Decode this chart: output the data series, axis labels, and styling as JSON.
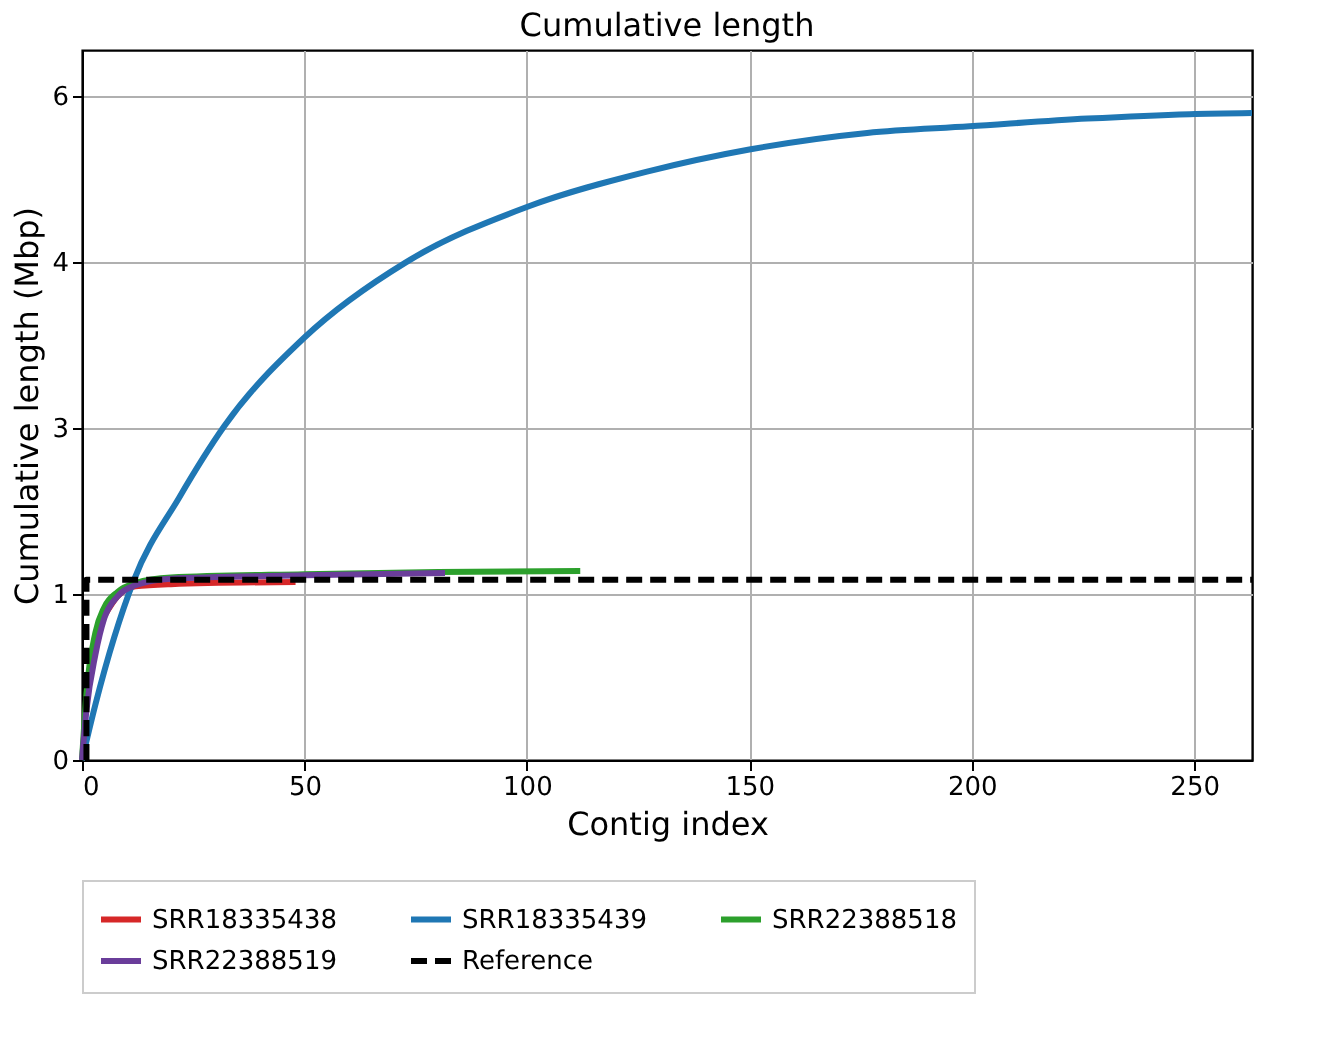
{
  "chart_data": {
    "type": "line",
    "title": "Cumulative length",
    "xlabel": "Contig index",
    "ylabel": "Cumulative length (Mbp)",
    "xlim": [
      0,
      263
    ],
    "xticks": [
      0,
      50,
      100,
      150,
      200,
      250
    ],
    "ylim": [
      0,
      6.42
    ],
    "yticks": [
      0,
      {
        "value": 1.5,
        "label": "1"
      },
      3,
      {
        "value": 4.5,
        "label": "4"
      },
      6
    ],
    "grid": true,
    "legend": "bottom",
    "line_style": "solid",
    "marker": "none",
    "series": [
      {
        "name": "SRR18335438",
        "color": "#d62728",
        "x": [
          5,
          8,
          12,
          20,
          48
        ],
        "values": [
          1.3,
          1.48,
          1.57,
          1.59,
          1.61
        ]
      },
      {
        "name": "SRR18335439",
        "color": "#1f77b4",
        "x": [
          0,
          3,
          11.6,
          21.8,
          32,
          50,
          72.8,
          100,
          127,
          150,
          176.5,
          199.5,
          226,
          249,
          263
        ],
        "values": [
          0,
          0.5,
          1.62,
          2.37,
          3.02,
          3.82,
          4.5,
          5.0,
          5.32,
          5.52,
          5.67,
          5.73,
          5.8,
          5.84,
          5.85
        ]
      },
      {
        "name": "SRR22388518",
        "color": "#2ca02c",
        "x": [
          0,
          1,
          3,
          5,
          8,
          12,
          20,
          50,
          80,
          112
        ],
        "values": [
          0,
          0.6,
          1.15,
          1.38,
          1.52,
          1.6,
          1.65,
          1.68,
          1.7,
          1.71
        ]
      },
      {
        "name": "SRR22388519",
        "color": "#6a3d9a",
        "x": [
          0,
          1,
          3,
          5,
          8,
          12,
          20,
          50,
          81.6
        ],
        "values": [
          0,
          0.45,
          0.95,
          1.28,
          1.48,
          1.58,
          1.64,
          1.67,
          1.69
        ]
      },
      {
        "name": "Reference",
        "color": "#000000",
        "line_style": "dashed",
        "x": [
          1,
          1,
          263
        ],
        "values": [
          0,
          1.63,
          1.63
        ]
      }
    ]
  }
}
